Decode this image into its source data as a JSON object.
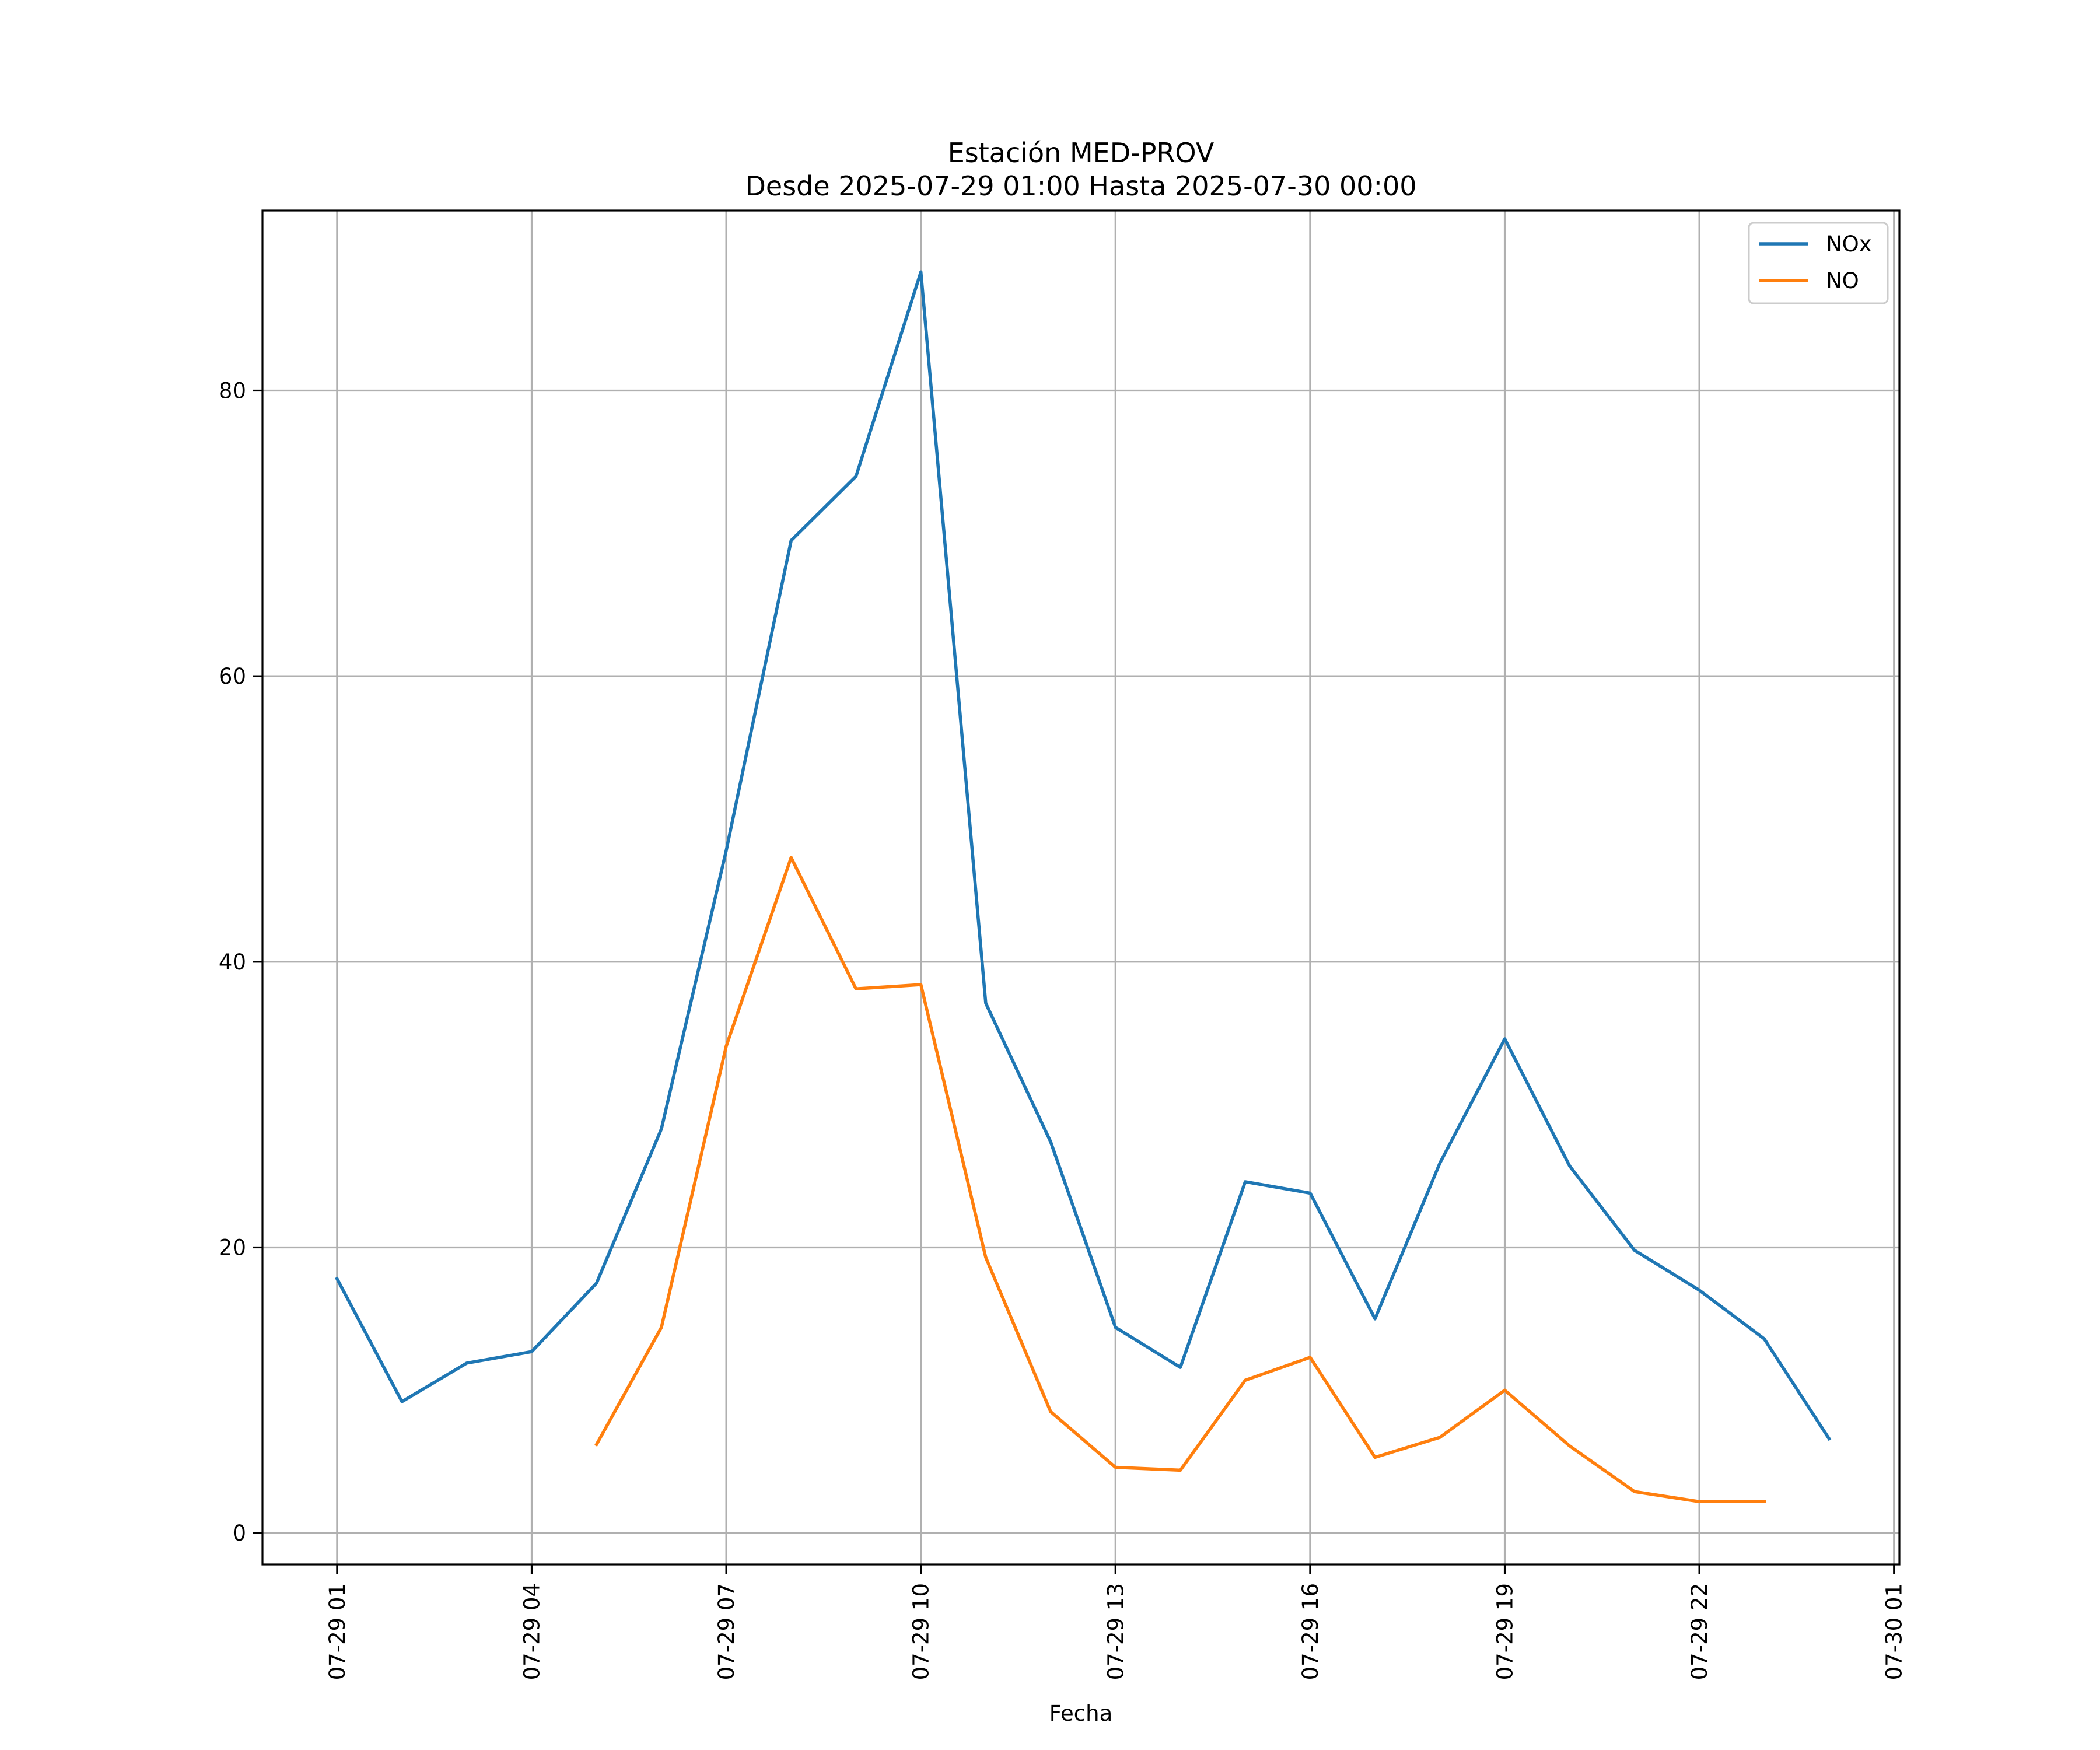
{
  "chart_data": {
    "type": "line",
    "title": "Estación MED-PROV",
    "subtitle": "Desde 2025-07-29 01:00 Hasta 2025-07-30 00:00",
    "xlabel": "Fecha",
    "ylabel": "",
    "x": [
      "2025-07-29 01:00",
      "2025-07-29 02:00",
      "2025-07-29 03:00",
      "2025-07-29 04:00",
      "2025-07-29 05:00",
      "2025-07-29 06:00",
      "2025-07-29 07:00",
      "2025-07-29 08:00",
      "2025-07-29 09:00",
      "2025-07-29 10:00",
      "2025-07-29 11:00",
      "2025-07-29 12:00",
      "2025-07-29 13:00",
      "2025-07-29 14:00",
      "2025-07-29 15:00",
      "2025-07-29 16:00",
      "2025-07-29 17:00",
      "2025-07-29 18:00",
      "2025-07-29 19:00",
      "2025-07-29 20:00",
      "2025-07-29 21:00",
      "2025-07-29 22:00",
      "2025-07-29 23:00",
      "2025-07-30 00:00"
    ],
    "series": [
      {
        "name": "NOx",
        "color": "#1f77b4",
        "values": [
          17.8,
          9.2,
          11.9,
          12.7,
          17.5,
          28.3,
          47.8,
          69.5,
          74.0,
          88.3,
          37.1,
          27.4,
          14.4,
          11.6,
          24.6,
          23.8,
          15.0,
          25.9,
          34.6,
          25.7,
          19.8,
          17.0,
          13.6,
          6.6
        ]
      },
      {
        "name": "NO",
        "color": "#ff7f0e",
        "values": [
          null,
          null,
          null,
          null,
          6.2,
          14.4,
          34.1,
          47.3,
          38.1,
          38.4,
          19.3,
          8.5,
          4.6,
          4.4,
          10.7,
          12.3,
          5.3,
          6.7,
          10.0,
          6.1,
          2.9,
          2.2,
          2.2,
          null
        ]
      }
    ],
    "xticks": [
      {
        "at": "2025-07-29 01:00",
        "label": "07-29 01"
      },
      {
        "at": "2025-07-29 04:00",
        "label": "07-29 04"
      },
      {
        "at": "2025-07-29 07:00",
        "label": "07-29 07"
      },
      {
        "at": "2025-07-29 10:00",
        "label": "07-29 10"
      },
      {
        "at": "2025-07-29 13:00",
        "label": "07-29 13"
      },
      {
        "at": "2025-07-29 16:00",
        "label": "07-29 16"
      },
      {
        "at": "2025-07-29 19:00",
        "label": "07-29 19"
      },
      {
        "at": "2025-07-29 22:00",
        "label": "07-29 22"
      },
      {
        "at": "2025-07-30 01:00",
        "label": "07-30 01"
      }
    ],
    "yticks": [
      0,
      20,
      40,
      60,
      80
    ],
    "xlim": [
      "2025-07-28 23:51",
      "2025-07-30 01:05"
    ],
    "ylim": [
      -2.2,
      92.6
    ],
    "grid": true,
    "legend_position": "upper right"
  }
}
